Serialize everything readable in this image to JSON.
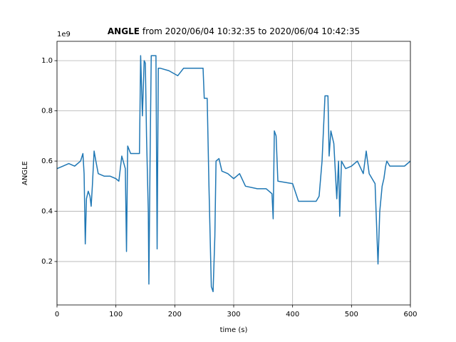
{
  "chart_data": {
    "type": "line",
    "title": {
      "bold": "ANGLE",
      "rest": "from 2020/06/04 10:32:35 to 2020/06/04 10:42:35"
    },
    "offset_text": "1e9",
    "x_label": "time (s)",
    "y_label": "ANGLE",
    "color": "#1f77b4",
    "grid": true,
    "xlim": [
      0,
      600
    ],
    "xticks": [
      0,
      100,
      200,
      300,
      400,
      500,
      600
    ],
    "ylim": [
      0.027,
      1.077
    ],
    "yticks": [
      0.2,
      0.4,
      0.6,
      {
        "value": 1.0,
        "label": "1.0"
      },
      0.8
    ],
    "x": [
      0,
      10,
      20,
      30,
      40,
      44,
      46,
      48,
      50,
      53,
      56,
      58,
      60,
      63,
      66,
      70,
      80,
      90,
      100,
      105,
      110,
      116,
      118,
      120,
      125,
      140,
      142,
      145,
      148,
      150,
      152,
      155,
      156,
      158,
      160,
      165,
      168,
      170,
      172,
      175,
      190,
      205,
      215,
      230,
      248,
      250,
      255,
      258,
      262,
      265,
      268,
      270,
      275,
      280,
      290,
      300,
      310,
      320,
      340,
      355,
      365,
      367,
      369,
      372,
      375,
      400,
      410,
      440,
      445,
      450,
      455,
      460,
      462,
      465,
      470,
      475,
      478,
      480,
      483,
      490,
      500,
      510,
      520,
      525,
      530,
      540,
      545,
      548,
      552,
      555,
      558,
      560,
      565,
      575,
      590,
      600
    ],
    "values": [
      0.57,
      0.58,
      0.59,
      0.58,
      0.6,
      0.63,
      0.55,
      0.27,
      0.45,
      0.48,
      0.46,
      0.42,
      0.5,
      0.64,
      0.6,
      0.55,
      0.54,
      0.54,
      0.53,
      0.52,
      0.62,
      0.57,
      0.24,
      0.66,
      0.63,
      0.63,
      1.02,
      0.78,
      1.0,
      0.99,
      0.7,
      0.4,
      0.11,
      0.6,
      1.02,
      1.02,
      1.02,
      0.25,
      0.97,
      0.97,
      0.96,
      0.94,
      0.97,
      0.97,
      0.97,
      0.85,
      0.85,
      0.5,
      0.1,
      0.08,
      0.3,
      0.6,
      0.61,
      0.56,
      0.55,
      0.53,
      0.55,
      0.5,
      0.49,
      0.49,
      0.47,
      0.37,
      0.72,
      0.7,
      0.52,
      0.51,
      0.44,
      0.44,
      0.46,
      0.6,
      0.86,
      0.86,
      0.62,
      0.72,
      0.67,
      0.45,
      0.6,
      0.38,
      0.6,
      0.57,
      0.58,
      0.6,
      0.55,
      0.64,
      0.55,
      0.51,
      0.19,
      0.4,
      0.5,
      0.53,
      0.58,
      0.6,
      0.58,
      0.58,
      0.58,
      0.6
    ]
  }
}
